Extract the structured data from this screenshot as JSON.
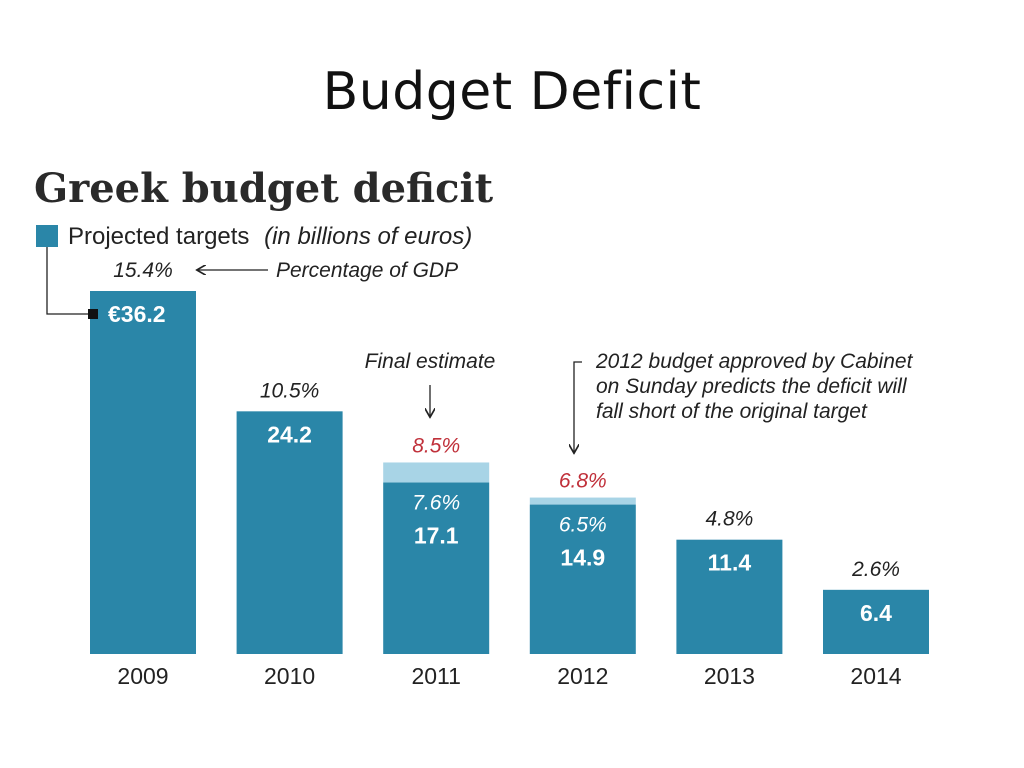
{
  "slide": {
    "title": "Budget Deficit"
  },
  "colors": {
    "bar": "#2a86a8",
    "final_estimate": "#a8d4e6",
    "final_text": "#c0303a"
  },
  "chart_data": {
    "type": "bar",
    "title": "Greek budget deficit",
    "legend": {
      "label": "Projected targets",
      "unit": "(in billions of euros)",
      "placement": "top-left"
    },
    "categories": [
      "2009",
      "2010",
      "2011",
      "2012",
      "2013",
      "2014"
    ],
    "series": [
      {
        "name": "Projected targets",
        "values": [
          36.2,
          24.2,
          17.1,
          14.9,
          11.4,
          6.4
        ],
        "value_labels": [
          "€36.2",
          "24.2",
          "17.1",
          "14.9",
          "11.4",
          "6.4"
        ],
        "pct_gdp": [
          "15.4%",
          "10.5%",
          "7.6%",
          "6.5%",
          "4.8%",
          "2.6%"
        ]
      }
    ],
    "final_estimate": {
      "categories": [
        "2011",
        "2012"
      ],
      "pct_gdp": [
        "8.5%",
        "6.8%"
      ],
      "values": [
        19.1,
        15.6
      ]
    },
    "annotations": {
      "pct_gdp": "Percentage of GDP",
      "final_estimate": "Final estimate",
      "budget_note": [
        "2012 budget approved by Cabinet",
        "on Sunday predicts the deficit will",
        "fall short of the original target"
      ]
    },
    "ylim": [
      0,
      36.2
    ],
    "grid": false
  }
}
